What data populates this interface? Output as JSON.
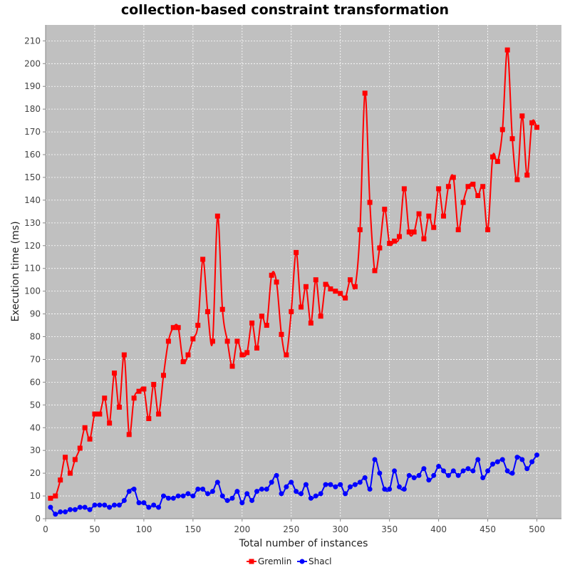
{
  "chart_data": {
    "type": "line",
    "title": "collection-based constraint transformation",
    "xlabel": "Total number of instances",
    "ylabel": "Execution time (ms)",
    "xlim": [
      0,
      525
    ],
    "ylim": [
      0,
      217
    ],
    "x_ticks": [
      0,
      50,
      100,
      150,
      200,
      250,
      300,
      350,
      400,
      450,
      500
    ],
    "y_ticks": [
      0,
      10,
      20,
      30,
      40,
      50,
      60,
      70,
      80,
      90,
      100,
      110,
      120,
      130,
      140,
      150,
      160,
      170,
      180,
      190,
      200,
      210
    ],
    "grid": true,
    "legend_position": "bottom-center",
    "x": [
      5,
      10,
      15,
      20,
      25,
      30,
      35,
      40,
      45,
      50,
      55,
      60,
      65,
      70,
      75,
      80,
      85,
      90,
      95,
      100,
      105,
      110,
      115,
      120,
      125,
      130,
      135,
      140,
      145,
      150,
      155,
      160,
      165,
      170,
      175,
      180,
      185,
      190,
      195,
      200,
      205,
      210,
      215,
      220,
      225,
      230,
      235,
      240,
      245,
      250,
      255,
      260,
      265,
      270,
      275,
      280,
      285,
      290,
      295,
      300,
      305,
      310,
      315,
      320,
      325,
      330,
      335,
      340,
      345,
      350,
      355,
      360,
      365,
      370,
      375,
      380,
      385,
      390,
      395,
      400,
      405,
      410,
      415,
      420,
      425,
      430,
      435,
      440,
      445,
      450,
      455,
      460,
      465,
      470,
      475,
      480,
      485,
      490,
      495,
      500
    ],
    "series": [
      {
        "name": "Gremlin",
        "color": "#ff0000",
        "marker": "square",
        "values": [
          9,
          10,
          17,
          27,
          20,
          26,
          31,
          40,
          35,
          46,
          46,
          53,
          42,
          64,
          49,
          72,
          37,
          53,
          56,
          57,
          44,
          59,
          46,
          63,
          78,
          84,
          84,
          69,
          72,
          79,
          85,
          114,
          91,
          78,
          133,
          92,
          78,
          67,
          78,
          72,
          73,
          86,
          75,
          89,
          85,
          107,
          104,
          81,
          72,
          91,
          117,
          93,
          102,
          86,
          105,
          89,
          103,
          101,
          100,
          99,
          97,
          105,
          102,
          127,
          187,
          139,
          109,
          119,
          136,
          121,
          122,
          124,
          145,
          126,
          126,
          134,
          123,
          133,
          128,
          145,
          133,
          146,
          150,
          127,
          139,
          146,
          147,
          142,
          146,
          127,
          159,
          157,
          171,
          206,
          167,
          149,
          177,
          151,
          174,
          172
        ]
      },
      {
        "name": "Shacl",
        "color": "#0000ff",
        "marker": "circle",
        "values": [
          5,
          2,
          3,
          3,
          4,
          4,
          5,
          5,
          4,
          6,
          6,
          6,
          5,
          6,
          6,
          8,
          12,
          13,
          7,
          7,
          5,
          6,
          5,
          10,
          9,
          9,
          10,
          10,
          11,
          10,
          13,
          13,
          11,
          12,
          16,
          10,
          8,
          9,
          12,
          7,
          11,
          8,
          12,
          13,
          13,
          16,
          19,
          11,
          14,
          16,
          12,
          11,
          15,
          9,
          10,
          11,
          15,
          15,
          14,
          15,
          11,
          14,
          15,
          16,
          18,
          13,
          26,
          20,
          13,
          13,
          21,
          14,
          13,
          19,
          18,
          19,
          22,
          17,
          19,
          23,
          21,
          19,
          21,
          19,
          21,
          22,
          21,
          26,
          18,
          21,
          24,
          25,
          26,
          21,
          20,
          27,
          26,
          22,
          25,
          28
        ]
      }
    ]
  }
}
